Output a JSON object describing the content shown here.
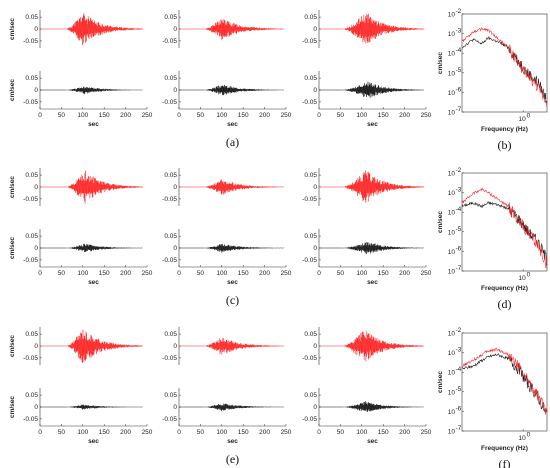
{
  "figure": {
    "panel_labels": [
      "(a)",
      "(b)",
      "(c)",
      "(d)",
      "(e)",
      "(f)"
    ],
    "row_labels_right": [
      "(b)",
      "(d)",
      "(f)"
    ],
    "row_labels_left": [
      "(a)",
      "(c)",
      "(e)"
    ]
  },
  "colors": {
    "observed": "#ff2020",
    "synthetic": "#111111",
    "axis": "#333333"
  },
  "chart_data": [
    {
      "type": "line",
      "description_keys": "waveform panels",
      "xlabel": "sec",
      "ylabel": "cm/sec",
      "xlim": [
        0,
        250
      ],
      "ylim": [
        -0.08,
        0.08
      ],
      "x_ticks": [
        "0",
        "50",
        "100",
        "150",
        "200",
        "250"
      ],
      "y_ticks": [
        "0.05",
        "0",
        "-0.05"
      ],
      "x_tick_values": [
        0,
        50,
        100,
        150,
        200,
        250
      ],
      "y_tick_values": [
        0.05,
        0,
        -0.05
      ],
      "rows": [
        {
          "panel": "(a)",
          "columns": [
            {
              "top": {
                "start": 60,
                "peak": 100,
                "end": 240,
                "amp": 0.075,
                "seed": 11
              },
              "bottom": {
                "start": 60,
                "peak": 105,
                "end": 240,
                "amp": 0.018,
                "seed": 12
              }
            },
            {
              "top": {
                "start": 58,
                "peak": 100,
                "end": 245,
                "amp": 0.05,
                "seed": 13
              },
              "bottom": {
                "start": 58,
                "peak": 100,
                "end": 245,
                "amp": 0.025,
                "seed": 14
              }
            },
            {
              "top": {
                "start": 55,
                "peak": 110,
                "end": 245,
                "amp": 0.075,
                "seed": 15
              },
              "bottom": {
                "start": 55,
                "peak": 115,
                "end": 245,
                "amp": 0.04,
                "seed": 16
              }
            }
          ]
        },
        {
          "panel": "(c)",
          "columns": [
            {
              "top": {
                "start": 62,
                "peak": 105,
                "end": 240,
                "amp": 0.075,
                "seed": 21
              },
              "bottom": {
                "start": 62,
                "peak": 105,
                "end": 240,
                "amp": 0.02,
                "seed": 22
              }
            },
            {
              "top": {
                "start": 58,
                "peak": 100,
                "end": 245,
                "amp": 0.035,
                "seed": 23
              },
              "bottom": {
                "start": 58,
                "peak": 100,
                "end": 245,
                "amp": 0.02,
                "seed": 24
              }
            },
            {
              "top": {
                "start": 55,
                "peak": 110,
                "end": 245,
                "amp": 0.075,
                "seed": 25
              },
              "bottom": {
                "start": 55,
                "peak": 115,
                "end": 245,
                "amp": 0.03,
                "seed": 26
              }
            }
          ]
        },
        {
          "panel": "(e)",
          "columns": [
            {
              "top": {
                "start": 62,
                "peak": 100,
                "end": 240,
                "amp": 0.08,
                "seed": 31
              },
              "bottom": {
                "start": 62,
                "peak": 100,
                "end": 240,
                "amp": 0.012,
                "seed": 32
              }
            },
            {
              "top": {
                "start": 58,
                "peak": 100,
                "end": 245,
                "amp": 0.04,
                "seed": 33
              },
              "bottom": {
                "start": 58,
                "peak": 100,
                "end": 245,
                "amp": 0.018,
                "seed": 34
              }
            },
            {
              "top": {
                "start": 55,
                "peak": 105,
                "end": 245,
                "amp": 0.075,
                "seed": 35
              },
              "bottom": {
                "start": 55,
                "peak": 110,
                "end": 245,
                "amp": 0.025,
                "seed": 36
              }
            }
          ]
        }
      ]
    },
    {
      "type": "line",
      "xlabel": "Frequency (Hz)",
      "ylabel": "cm/sec",
      "x_scale": "log",
      "y_scale": "log",
      "y_ticks": [
        "10^-2",
        "10^-3",
        "10^-4",
        "10^-5",
        "10^-6",
        "10^-7"
      ],
      "y_exponents": [
        -2,
        -3,
        -4,
        -5,
        -6,
        -7
      ],
      "x_ticks": [
        "10^0"
      ],
      "xlim": [
        0.06,
        3
      ],
      "ylim": [
        1e-07,
        0.01
      ],
      "rows": [
        {
          "panel": "(b)",
          "observed": {
            "x": [
              0.06,
              0.1,
              0.15,
              0.2,
              0.3,
              0.5,
              0.8,
              1.2,
              2,
              3
            ],
            "y": [
              0.0004,
              0.0012,
              0.0017,
              0.0015,
              0.0006,
              0.0002,
              3e-05,
              8e-06,
              2e-06,
              3e-07
            ]
          },
          "synthetic": {
            "x": [
              0.06,
              0.1,
              0.15,
              0.2,
              0.3,
              0.5,
              0.8,
              1.2,
              2,
              3
            ],
            "y": [
              0.0002,
              0.0005,
              0.0003,
              0.0006,
              0.0004,
              0.0002,
              4e-05,
              1e-05,
              3e-06,
              4e-07
            ]
          }
        },
        {
          "panel": "(d)",
          "observed": {
            "x": [
              0.06,
              0.1,
              0.15,
              0.2,
              0.3,
              0.5,
              0.8,
              1.2,
              2,
              3
            ],
            "y": [
              0.0003,
              0.0009,
              0.0015,
              0.001,
              0.0005,
              0.0002,
              4e-05,
              1e-05,
              2e-06,
              2e-07
            ]
          },
          "synthetic": {
            "x": [
              0.06,
              0.1,
              0.15,
              0.2,
              0.3,
              0.5,
              0.8,
              1.2,
              2,
              3
            ],
            "y": [
              0.0002,
              0.0003,
              0.0002,
              0.0003,
              0.00025,
              0.00015,
              5e-05,
              1.2e-05,
              3e-06,
              4e-07
            ]
          }
        },
        {
          "panel": "(f)",
          "observed": {
            "x": [
              0.06,
              0.1,
              0.15,
              0.2,
              0.3,
              0.5,
              0.8,
              1.2,
              2,
              3
            ],
            "y": [
              0.0002,
              0.0004,
              0.0008,
              0.0012,
              0.0015,
              0.0008,
              0.0002,
              4e-05,
              6e-06,
              8e-07
            ]
          },
          "synthetic": {
            "x": [
              0.06,
              0.1,
              0.15,
              0.2,
              0.3,
              0.5,
              0.8,
              1.2,
              2,
              3
            ],
            "y": [
              0.00015,
              0.0002,
              0.0004,
              0.0006,
              0.0008,
              0.0005,
              0.00015,
              3e-05,
              5e-06,
              7e-07
            ]
          }
        }
      ]
    }
  ]
}
